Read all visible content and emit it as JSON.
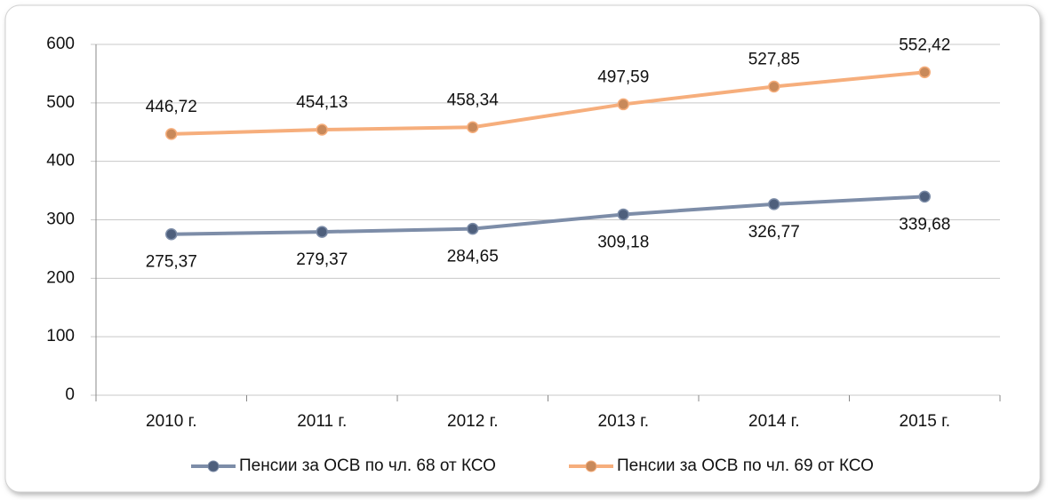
{
  "chart_data": {
    "type": "line",
    "categories": [
      "2010 г.",
      "2011 г.",
      "2012 г.",
      "2013 г.",
      "2014 г.",
      "2015 г."
    ],
    "series": [
      {
        "name": "Пенсии за ОСВ по чл. 68 от КСО",
        "color": "#7d8da8",
        "marker_color": "#4e5f7c",
        "values": [
          275.37,
          279.37,
          284.65,
          309.18,
          326.77,
          339.68
        ],
        "value_labels": [
          "275,37",
          "279,37",
          "284,65",
          "309,18",
          "326,77",
          "339,68"
        ]
      },
      {
        "name": "Пенсии за ОСВ по чл. 69 от КСО",
        "color": "#f6ae7c",
        "marker_color": "#c8895a",
        "values": [
          446.72,
          454.13,
          458.34,
          497.59,
          527.85,
          552.42
        ],
        "value_labels": [
          "446,72",
          "454,13",
          "458,34",
          "497,59",
          "527,85",
          "552,42"
        ]
      }
    ],
    "ylim": [
      0,
      600
    ],
    "yticks": [
      0,
      100,
      200,
      300,
      400,
      500,
      600
    ],
    "grid": true,
    "legend": "bottom"
  }
}
